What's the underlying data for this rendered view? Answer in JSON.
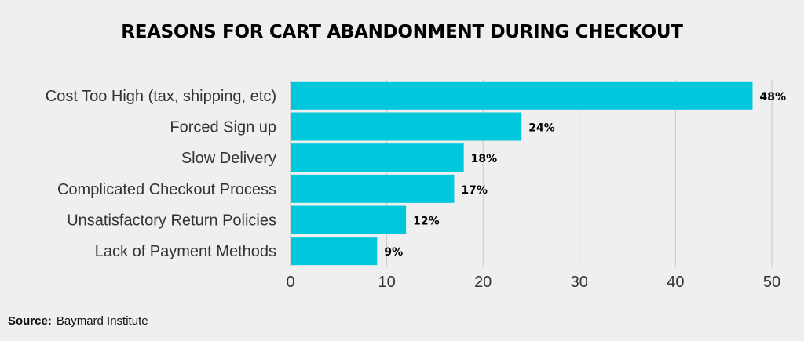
{
  "chart_data": {
    "type": "bar",
    "orientation": "horizontal",
    "title": "REASONS FOR CART ABANDONMENT DURING CHECKOUT",
    "categories": [
      "Cost Too High (tax, shipping, etc)",
      "Forced Sign up",
      "Slow Delivery",
      "Complicated Checkout Process",
      "Unsatisfactory Return Policies",
      "Lack of Payment Methods"
    ],
    "values": [
      48,
      24,
      18,
      17,
      12,
      9
    ],
    "value_labels": [
      "48%",
      "24%",
      "18%",
      "17%",
      "12%",
      "9%"
    ],
    "xlim": [
      0,
      50
    ],
    "x_ticks": [
      0,
      10,
      20,
      30,
      40,
      50
    ],
    "xlabel": "",
    "ylabel": "",
    "grid": "vertical",
    "bar_color": "#00c8dc",
    "grid_color": "#c8c8c8"
  },
  "source": {
    "label": "Source:",
    "text": "Baymard Institute"
  }
}
